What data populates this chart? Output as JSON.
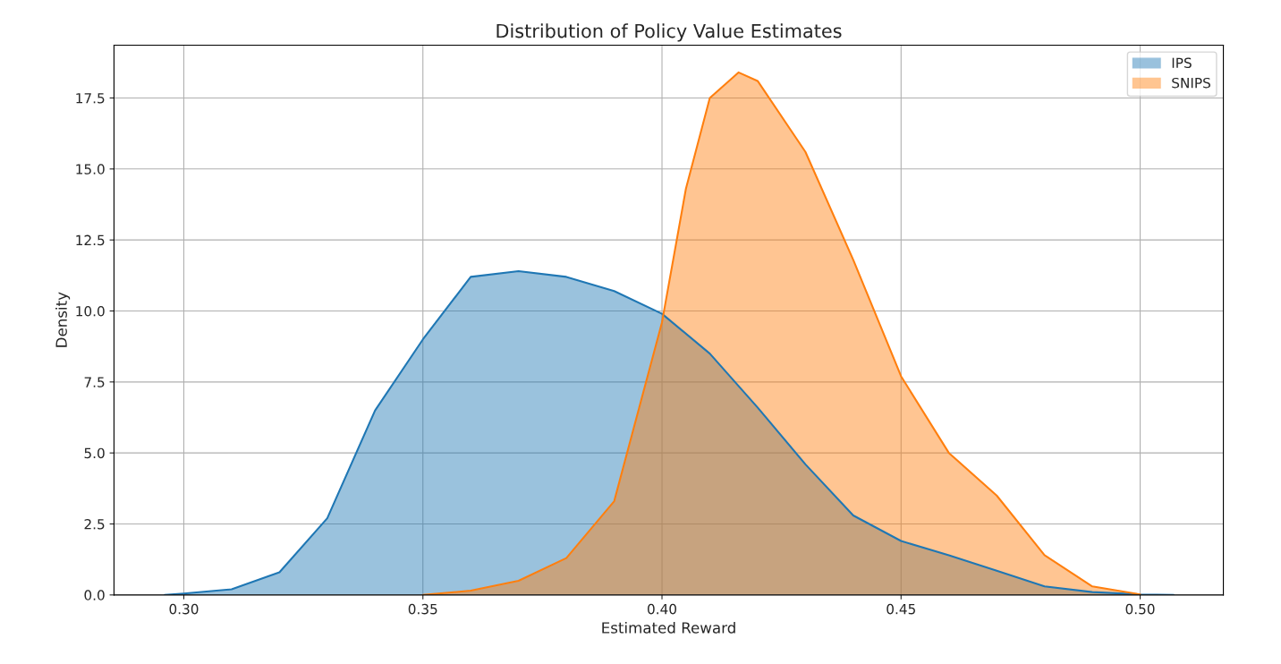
{
  "chart_data": {
    "type": "area",
    "title": "Distribution of Policy Value Estimates",
    "xlabel": "Estimated Reward",
    "ylabel": "Density",
    "series": [
      {
        "name": "IPS",
        "color": "#1f77b4",
        "x": [
          0.296,
          0.3,
          0.31,
          0.32,
          0.33,
          0.34,
          0.35,
          0.36,
          0.37,
          0.38,
          0.39,
          0.4,
          0.41,
          0.42,
          0.43,
          0.44,
          0.45,
          0.46,
          0.47,
          0.48,
          0.49,
          0.5,
          0.507
        ],
        "values": [
          0,
          0.05,
          0.2,
          0.8,
          2.7,
          6.5,
          9.0,
          11.2,
          11.4,
          11.2,
          10.7,
          9.9,
          8.5,
          6.6,
          4.6,
          2.8,
          1.9,
          1.4,
          0.85,
          0.3,
          0.1,
          0.02,
          0
        ]
      },
      {
        "name": "SNIPS",
        "color": "#ff7f0e",
        "x": [
          0.35,
          0.36,
          0.37,
          0.38,
          0.39,
          0.4,
          0.405,
          0.41,
          0.416,
          0.42,
          0.43,
          0.44,
          0.45,
          0.46,
          0.47,
          0.48,
          0.49,
          0.5
        ],
        "values": [
          0,
          0.15,
          0.5,
          1.3,
          3.3,
          9.6,
          14.3,
          17.5,
          18.4,
          18.1,
          15.6,
          11.8,
          7.7,
          5.0,
          3.5,
          1.4,
          0.3,
          0.02
        ]
      }
    ],
    "xlim": [
      0.2854,
      0.5174
    ],
    "xticks": [
      {
        "value": 0.3,
        "label": "0.30"
      },
      {
        "value": 0.35,
        "label": "0.35"
      },
      {
        "value": 0.4,
        "label": "0.40"
      },
      {
        "value": 0.45,
        "label": "0.45"
      },
      {
        "value": 0.5,
        "label": "0.50"
      }
    ],
    "ylim": [
      0,
      19.36
    ],
    "yticks": [
      {
        "value": 0,
        "label": "0.0"
      },
      {
        "value": 2.5,
        "label": "2.5"
      },
      {
        "value": 5,
        "label": "5.0"
      },
      {
        "value": 7.5,
        "label": "7.5"
      },
      {
        "value": 10,
        "label": "10.0"
      },
      {
        "value": 12.5,
        "label": "12.5"
      },
      {
        "value": 15,
        "label": "15.0"
      },
      {
        "value": 17.5,
        "label": "17.5"
      }
    ],
    "grid": true,
    "legend": "top right"
  }
}
